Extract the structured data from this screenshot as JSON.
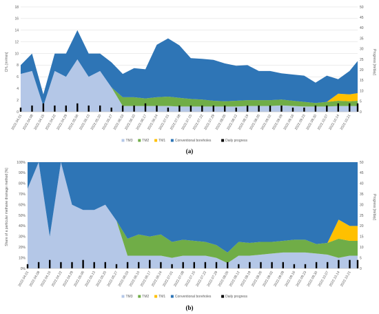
{
  "colors": {
    "TM3": "#b4c7e7",
    "TM2": "#70ad47",
    "TM1": "#ffc000",
    "Conventional boreholes": "#2e75b6",
    "Daily progress": "#000000"
  },
  "chart_data": [
    {
      "type": "area",
      "panel_label": "(a)",
      "ylabel": "CH₄ [m³/min]",
      "y2label": "Progress [m/day]",
      "ylim": [
        0,
        18
      ],
      "yticks": [
        0,
        2,
        4,
        6,
        8,
        10,
        12,
        14,
        16,
        18
      ],
      "y2lim": [
        0,
        50
      ],
      "y2ticks": [
        0,
        5,
        10,
        15,
        20,
        25,
        30,
        35,
        40,
        45,
        50
      ],
      "grid": true,
      "legend_position": "bottom",
      "x_range": [
        "2022-04-01",
        "2022-10-26"
      ],
      "x_tick_labels": [
        "2022.04.01",
        "2022.04.08",
        "2022.04.15",
        "2022.04.22",
        "2022.04.29",
        "2022.05.06",
        "2022.05.13",
        "2022.05.20",
        "2022.05.27",
        "2022.06.03",
        "2022.06.10",
        "2022.06.17",
        "2022.06.24",
        "2022.07.01",
        "2022.07.08",
        "2022.07.15",
        "2022.07.22",
        "2022.07.29",
        "2022.08.05",
        "2022.08.12",
        "2022.08.19",
        "2022.08.26",
        "2022.09.02",
        "2022.09.09",
        "2022.09.16",
        "2022.09.23",
        "2022.09.30",
        "2022.10.07",
        "2022.10.14",
        "2022.10.21"
      ],
      "x": [
        "2022-04-01",
        "2022-04-08",
        "2022-04-15",
        "2022-04-22",
        "2022-04-29",
        "2022-05-06",
        "2022-05-13",
        "2022-05-20",
        "2022-05-27",
        "2022-06-03",
        "2022-06-10",
        "2022-06-17",
        "2022-06-24",
        "2022-07-01",
        "2022-07-08",
        "2022-07-15",
        "2022-07-22",
        "2022-07-29",
        "2022-08-05",
        "2022-08-12",
        "2022-08-19",
        "2022-08-26",
        "2022-09-02",
        "2022-09-09",
        "2022-09-16",
        "2022-09-23",
        "2022-09-30",
        "2022-10-07",
        "2022-10-14",
        "2022-10-21",
        "2022-10-26"
      ],
      "stacked": true,
      "series": [
        {
          "name": "TM3",
          "axis": "left",
          "values": [
            6.5,
            7,
            1,
            7,
            6,
            9,
            6,
            7,
            4.2,
            1,
            1,
            1,
            1,
            1,
            0.9,
            0.9,
            0.9,
            0.9,
            0.9,
            0.9,
            1,
            1,
            1,
            1.1,
            1,
            0.9,
            0.9,
            0.9,
            1,
            1,
            1
          ]
        },
        {
          "name": "TM2",
          "axis": "left",
          "values": [
            0,
            0,
            0,
            0,
            0,
            0,
            0,
            0,
            0,
            1.5,
            1.5,
            1.3,
            1.5,
            1.6,
            1.5,
            1.3,
            1.2,
            1,
            0.9,
            1,
            1,
            1,
            1,
            1,
            0.9,
            0.8,
            0.6,
            0.8,
            0.9,
            0.8,
            0.9
          ]
        },
        {
          "name": "TM1",
          "axis": "left",
          "values": [
            0,
            0,
            0,
            0,
            0,
            0,
            0,
            0,
            0,
            0,
            0,
            0,
            0,
            0,
            0,
            0,
            0,
            0,
            0,
            0,
            0,
            0,
            0,
            0,
            0,
            0,
            0,
            0,
            1.2,
            1.2,
            1.3
          ]
        },
        {
          "name": "Conventional boreholes",
          "axis": "left",
          "values": [
            1.5,
            3,
            2,
            3,
            4,
            5,
            4,
            3,
            4.3,
            4,
            5,
            5,
            9,
            10,
            9,
            7,
            7,
            7,
            6.5,
            6,
            6,
            5,
            5,
            4.5,
            4.5,
            4.5,
            3.5,
            4.5,
            2.5,
            4,
            5.5
          ]
        },
        {
          "name": "Daily progress",
          "axis": "right",
          "type": "bar",
          "values": [
            2,
            3,
            4,
            3,
            3,
            4,
            3,
            3,
            2,
            3,
            3,
            4,
            3,
            2,
            3,
            3,
            3,
            3,
            3,
            2,
            3,
            3,
            3,
            3,
            2,
            2,
            3,
            3,
            4,
            4,
            4
          ]
        }
      ]
    },
    {
      "type": "area",
      "panel_label": "(b)",
      "ylabel": "Share of a particular methane drainage method [%]",
      "y2label": "Progress [m/day]",
      "ylim": [
        0,
        100
      ],
      "yticks": [
        0,
        10,
        20,
        30,
        40,
        50,
        60,
        70,
        80,
        90,
        100
      ],
      "ytick_suffix": "%",
      "y2lim": [
        0,
        50
      ],
      "y2ticks": [
        0,
        5,
        10,
        15,
        20,
        25,
        30,
        35,
        40,
        45,
        50
      ],
      "grid": true,
      "legend_position": "bottom",
      "x_range": [
        "2022-04-01",
        "2022-10-26"
      ],
      "x_tick_labels": [
        "2022.04.01",
        "2022.04.08",
        "2022.04.15",
        "2022.04.22",
        "2022.04.29",
        "2022.05.06",
        "2022.05.13",
        "2022.05.20",
        "2022.05.27",
        "2022.06.03",
        "2022.06.10",
        "2022.06.17",
        "2022.06.24",
        "2022.07.01",
        "2022.07.08",
        "2022.07.15",
        "2022.07.22",
        "2022.07.29",
        "2022.08.05",
        "2022.08.12",
        "2022.08.19",
        "2022.08.26",
        "2022.09.02",
        "2022.09.09",
        "2022.09.16",
        "2022.09.23",
        "2022.09.30",
        "2022.10.07",
        "2022.10.14",
        "2022.10.21"
      ],
      "x": [
        "2022-04-01",
        "2022-04-08",
        "2022-04-15",
        "2022-04-22",
        "2022-04-29",
        "2022-05-06",
        "2022-05-13",
        "2022-05-20",
        "2022-05-27",
        "2022-06-03",
        "2022-06-10",
        "2022-06-17",
        "2022-06-24",
        "2022-07-01",
        "2022-07-08",
        "2022-07-15",
        "2022-07-22",
        "2022-07-29",
        "2022-08-05",
        "2022-08-12",
        "2022-08-19",
        "2022-08-26",
        "2022-09-02",
        "2022-09-09",
        "2022-09-16",
        "2022-09-23",
        "2022-09-30",
        "2022-10-07",
        "2022-10-14",
        "2022-10-21",
        "2022-10-26"
      ],
      "stacked": true,
      "series": [
        {
          "name": "TM3",
          "axis": "left",
          "values": [
            75,
            100,
            30,
            100,
            60,
            55,
            55,
            60,
            45,
            12,
            12,
            12,
            12,
            10,
            12,
            12,
            12,
            10,
            5,
            12,
            12,
            13,
            14,
            15,
            15,
            15,
            14,
            13,
            10,
            12,
            12
          ]
        },
        {
          "name": "TM2",
          "axis": "left",
          "values": [
            0,
            0,
            0,
            0,
            0,
            0,
            0,
            0,
            0,
            16,
            20,
            18,
            20,
            15,
            15,
            14,
            13,
            12,
            10,
            13,
            12,
            12,
            11,
            11,
            12,
            12,
            9,
            11,
            18,
            14,
            14
          ]
        },
        {
          "name": "TM1",
          "axis": "left",
          "values": [
            0,
            0,
            0,
            0,
            0,
            0,
            0,
            0,
            0,
            0,
            0,
            0,
            0,
            0,
            0,
            0,
            0,
            0,
            0,
            0,
            0,
            0,
            0,
            0,
            0,
            0,
            0,
            0,
            18,
            14,
            14
          ]
        },
        {
          "name": "Conventional boreholes",
          "axis": "left",
          "values": [
            25,
            0,
            70,
            0,
            40,
            45,
            45,
            40,
            55,
            72,
            68,
            70,
            68,
            75,
            73,
            74,
            75,
            78,
            85,
            75,
            76,
            75,
            75,
            74,
            73,
            73,
            77,
            76,
            54,
            60,
            60
          ]
        },
        {
          "name": "Daily progress",
          "axis": "right",
          "type": "bar",
          "values": [
            2,
            3,
            4,
            3,
            3,
            4,
            3,
            3,
            2,
            3,
            3,
            4,
            3,
            2,
            3,
            3,
            3,
            3,
            3,
            2,
            3,
            3,
            3,
            3,
            2,
            2,
            3,
            3,
            4,
            4,
            4
          ]
        }
      ]
    }
  ]
}
